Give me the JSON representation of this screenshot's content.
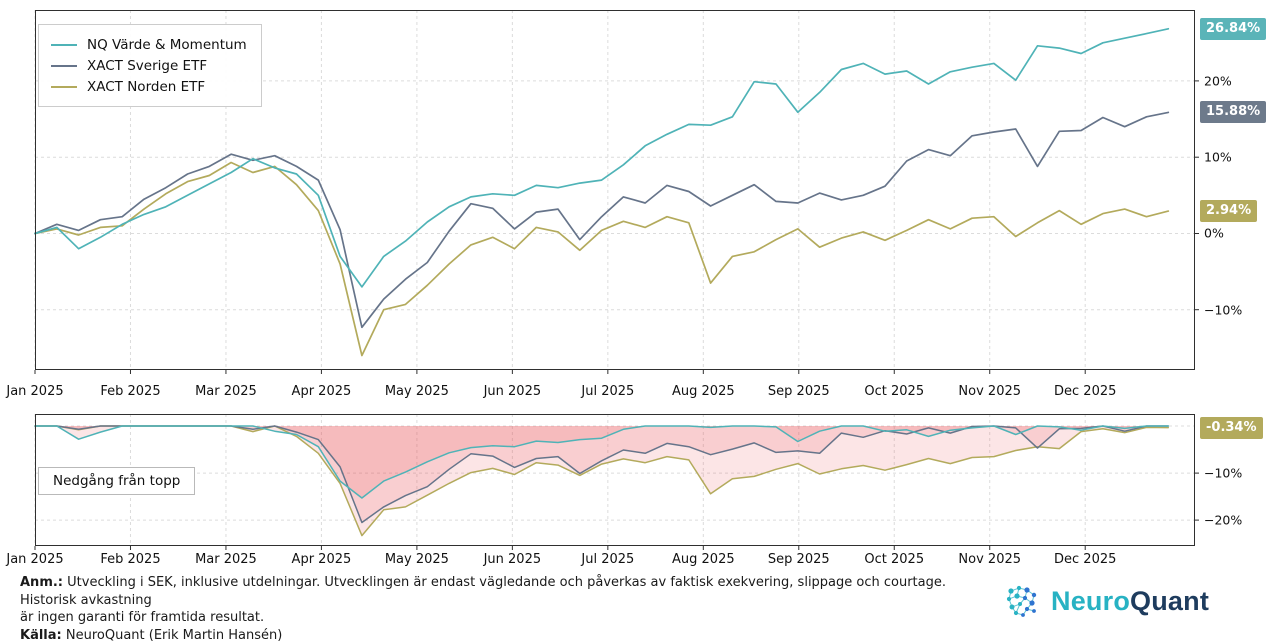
{
  "legend": {
    "items": [
      {
        "label": "NQ Värde & Momentum",
        "color": "#4fb3b7"
      },
      {
        "label": "XACT Sverige ETF",
        "color": "#66748a"
      },
      {
        "label": "XACT Norden ETF",
        "color": "#b3aa5c"
      }
    ]
  },
  "drawdown_annotation": "Nedgång från topp",
  "badges": {
    "nq": {
      "text": "26.84%",
      "value": 26.84,
      "chart": 0,
      "color": "#5ab4b8"
    },
    "sverige": {
      "text": "15.88%",
      "value": 15.88,
      "chart": 0,
      "color": "#6d7a8b"
    },
    "norden": {
      "text": "2.94%",
      "value": 2.94,
      "chart": 0,
      "color": "#b3aa5c"
    },
    "drawdown": {
      "text": "-0.34%",
      "value": -0.34,
      "chart": 1,
      "color": "#b3aa5c"
    }
  },
  "footer": {
    "note_label": "Anm.:",
    "note_line1": "Utveckling i SEK, inklusive utdelningar. Utvecklingen är endast vägledande och påverkas av faktisk exekvering, slippage och courtage. Historisk avkastning",
    "note_line2": "är ingen garanti för framtida resultat.",
    "source_label": "Källa:",
    "source_text": "NeuroQuant (Erik Martin Hansén)"
  },
  "logo": {
    "text_primary": "Neuro",
    "text_secondary": "Quant",
    "color_primary": "#27b2c3",
    "color_secondary": "#1e3c5e"
  },
  "chart_data": [
    {
      "type": "line",
      "panel": "cumulative-return",
      "title": "",
      "unit": "%",
      "grid": true,
      "legend_position": "upper-left",
      "x_categories": [
        "Jan 2025",
        "Feb 2025",
        "Mar 2025",
        "Apr 2025",
        "May 2025",
        "Jun 2025",
        "Jul 2025",
        "Aug 2025",
        "Sep 2025",
        "Oct 2025",
        "Nov 2025",
        "Dec 2025"
      ],
      "x_axis_months": 12.15,
      "x_data_end_month": 11.87,
      "ylim": [
        -17.9,
        29.3
      ],
      "yticks": [
        {
          "value": 20,
          "label": "20%"
        },
        {
          "value": 10,
          "label": "10%"
        },
        {
          "value": 0,
          "label": "0%"
        },
        {
          "value": -10,
          "label": "−10%"
        }
      ],
      "series": [
        {
          "name": "NQ Värde & Momentum",
          "color": "#4fb3b7",
          "end_label": "26.84%",
          "values": [
            0,
            0.8,
            -2.0,
            -0.5,
            1.2,
            2.5,
            3.5,
            5.0,
            6.5,
            8.0,
            9.8,
            8.6,
            7.8,
            5.0,
            -3.0,
            -7.0,
            -3.0,
            -1.0,
            1.5,
            3.5,
            4.8,
            5.2,
            5.0,
            6.3,
            6.0,
            6.6,
            7.0,
            9.0,
            11.5,
            13.0,
            14.3,
            14.2,
            15.3,
            19.9,
            19.6,
            15.9,
            18.5,
            21.5,
            22.3,
            20.9,
            21.3,
            19.6,
            21.2,
            21.8,
            22.3,
            20.1,
            24.6,
            24.3,
            23.6,
            25.0,
            25.6,
            26.2,
            26.84
          ]
        },
        {
          "name": "XACT Sverige ETF",
          "color": "#66748a",
          "end_label": "15.88%",
          "values": [
            0,
            1.2,
            0.4,
            1.8,
            2.2,
            4.5,
            6.0,
            7.8,
            8.8,
            10.4,
            9.6,
            10.2,
            8.8,
            7.0,
            0.5,
            -12.3,
            -8.6,
            -6.0,
            -3.8,
            0.3,
            3.9,
            3.3,
            0.6,
            2.8,
            3.2,
            -0.8,
            2.2,
            4.8,
            4.0,
            6.3,
            5.5,
            3.6,
            5.0,
            6.4,
            4.2,
            4.0,
            5.3,
            4.4,
            5.0,
            6.2,
            9.5,
            11.0,
            10.2,
            12.8,
            13.3,
            13.7,
            8.8,
            13.4,
            13.5,
            15.2,
            14.0,
            15.3,
            15.88
          ]
        },
        {
          "name": "XACT Norden ETF",
          "color": "#b3aa5c",
          "end_label": "2.94%",
          "values": [
            0,
            0.6,
            -0.2,
            0.8,
            1.0,
            3.2,
            5.2,
            6.8,
            7.6,
            9.3,
            8.0,
            8.8,
            6.4,
            3.0,
            -4.0,
            -16.0,
            -10.0,
            -9.3,
            -6.8,
            -4.0,
            -1.5,
            -0.5,
            -2.0,
            0.8,
            0.2,
            -2.2,
            0.4,
            1.6,
            0.8,
            2.2,
            1.4,
            -6.5,
            -3.0,
            -2.4,
            -0.8,
            0.6,
            -1.8,
            -0.6,
            0.2,
            -0.9,
            0.4,
            1.8,
            0.6,
            2.0,
            2.2,
            -0.4,
            1.4,
            3.0,
            1.2,
            2.6,
            3.2,
            2.2,
            2.94
          ]
        }
      ]
    },
    {
      "type": "area",
      "panel": "drawdown",
      "title": "",
      "annotation": "Nedgång från topp",
      "unit": "%",
      "grid": true,
      "fill_color": "#e7464f",
      "fill_opacity": 0.14,
      "x_categories": [
        "Jan 2025",
        "Feb 2025",
        "Mar 2025",
        "Apr 2025",
        "May 2025",
        "Jun 2025",
        "Jul 2025",
        "Aug 2025",
        "Sep 2025",
        "Oct 2025",
        "Nov 2025",
        "Dec 2025"
      ],
      "x_axis_months": 12.15,
      "x_data_end_month": 11.87,
      "ylim": [
        -25.5,
        2.55
      ],
      "yticks": [
        {
          "value": 0,
          "label": ""
        },
        {
          "value": -10,
          "label": "−10%"
        },
        {
          "value": -20,
          "label": "−20%"
        }
      ],
      "series": [
        {
          "name": "NQ Värde & Momentum",
          "color": "#4fb3b7",
          "end_label": "",
          "values": [
            0,
            0,
            -2.8,
            -1.3,
            0,
            0,
            0,
            0,
            0,
            0,
            0,
            -1.1,
            -1.8,
            -4.4,
            -11.7,
            -15.3,
            -11.7,
            -9.8,
            -7.6,
            -5.7,
            -4.6,
            -4.2,
            -4.4,
            -3.2,
            -3.5,
            -2.9,
            -2.6,
            -0.7,
            0,
            0,
            0,
            -0.3,
            0,
            0,
            -0.2,
            -3.3,
            -1.1,
            0,
            0,
            -1.1,
            -0.8,
            -2.2,
            -0.9,
            -0.4,
            0,
            -1.8,
            0,
            -0.2,
            -0.9,
            0,
            -0.5,
            0,
            0
          ]
        },
        {
          "name": "XACT Sverige ETF",
          "color": "#66748a",
          "end_label": "",
          "values": [
            0,
            0,
            -0.7,
            0,
            0,
            0,
            0,
            0,
            0,
            0,
            -0.7,
            0,
            -1.3,
            -2.9,
            -8.7,
            -20.5,
            -17.2,
            -14.8,
            -12.9,
            -9.2,
            -5.9,
            -6.4,
            -8.8,
            -6.9,
            -6.5,
            -10.1,
            -7.4,
            -5.1,
            -5.8,
            -3.7,
            -4.4,
            -6.1,
            -4.9,
            -3.6,
            -5.6,
            -5.3,
            -5.8,
            -1.5,
            -2.4,
            -1.0,
            -1.7,
            -0.4,
            -1.5,
            -0.1,
            0,
            -0.4,
            -4.7,
            -0.6,
            -0.5,
            0,
            -1.1,
            0,
            0
          ]
        },
        {
          "name": "XACT Norden ETF",
          "color": "#b3aa5c",
          "end_label": "-0.34%",
          "values": [
            0,
            0,
            -0.8,
            0,
            0,
            0,
            0,
            0,
            0,
            0,
            -1.2,
            0,
            -2.2,
            -5.8,
            -12.2,
            -23.3,
            -17.8,
            -17.2,
            -14.7,
            -12.2,
            -9.9,
            -9.0,
            -10.3,
            -7.8,
            -8.3,
            -10.5,
            -8.1,
            -7.0,
            -7.8,
            -6.5,
            -7.2,
            -14.4,
            -11.2,
            -10.7,
            -9.2,
            -8.0,
            -10.2,
            -9.1,
            -8.4,
            -9.4,
            -8.2,
            -6.9,
            -8.0,
            -6.7,
            -6.5,
            -5.2,
            -4.4,
            -4.8,
            -1.2,
            -0.6,
            -1.4,
            -0.3,
            -0.34
          ]
        }
      ]
    }
  ]
}
